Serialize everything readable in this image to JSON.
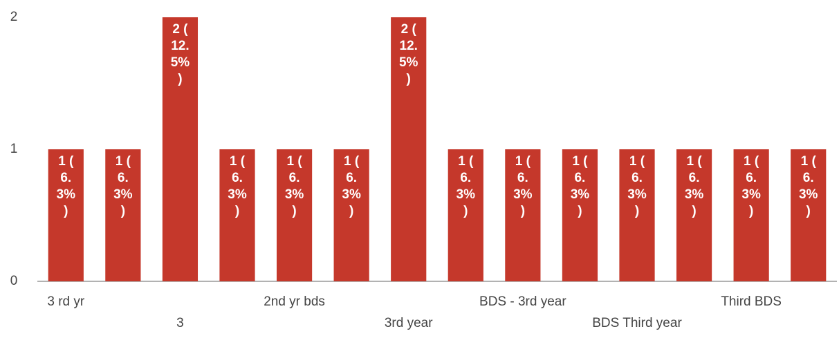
{
  "chart_data": {
    "type": "bar",
    "categories": [
      "3 rd yr",
      null,
      "3",
      null,
      "2nd yr bds",
      null,
      "3rd year",
      null,
      "BDS - 3rd year",
      null,
      "BDS Third year",
      null,
      "Third BDS",
      null
    ],
    "values": [
      1,
      1,
      2,
      1,
      1,
      1,
      2,
      1,
      1,
      1,
      1,
      1,
      1,
      1
    ],
    "value_labels": [
      "1 (6.3%)",
      "1 (6.3%)",
      "2 (12.5%)",
      "1 (6.3%)",
      "1 (6.3%)",
      "1 (6.3%)",
      "2 (12.5%)",
      "1 (6.3%)",
      "1 (6.3%)",
      "1 (6.3%)",
      "1 (6.3%)",
      "1 (6.3%)",
      "1 (6.3%)",
      "1 (6.3%)"
    ],
    "color": "#c5382b",
    "ylim": [
      0,
      2
    ],
    "yticks": [
      0,
      1,
      2
    ],
    "grid": false
  }
}
